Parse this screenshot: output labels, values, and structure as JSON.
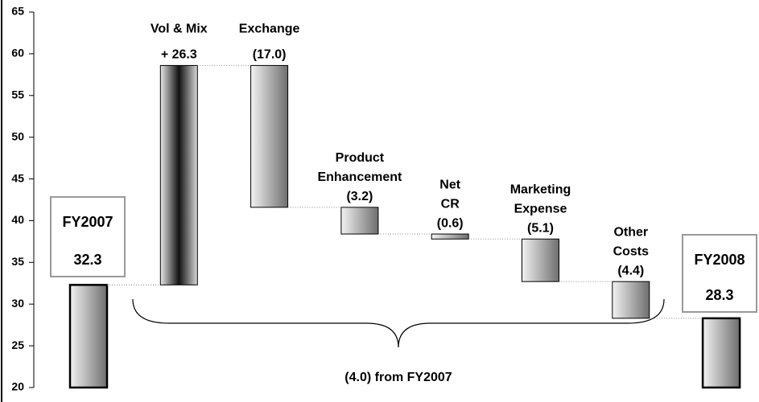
{
  "chart_data": {
    "type": "waterfall",
    "categories": [
      [
        "FY2007"
      ],
      [
        "Vol & Mix"
      ],
      [
        "Exchange"
      ],
      [
        "Product",
        "Enhancement"
      ],
      [
        "Net",
        "CR"
      ],
      [
        "Marketing",
        "Expense"
      ],
      [
        "Other",
        "Costs"
      ],
      [
        "FY2008"
      ]
    ],
    "values": [
      32.3,
      26.3,
      -17.0,
      -3.2,
      -0.6,
      -5.1,
      -4.4,
      28.3
    ],
    "value_labels": [
      "32.3",
      "+ 26.3",
      "(17.0)",
      "(3.2)",
      "(0.6)",
      "(5.1)",
      "(4.4)",
      "28.3"
    ],
    "total_indices": [
      0,
      7
    ],
    "ylim": [
      20,
      65
    ],
    "yticks": [
      20,
      25,
      30,
      35,
      40,
      45,
      50,
      55,
      60,
      65
    ],
    "annotation": "(4.0) from FY2007"
  }
}
